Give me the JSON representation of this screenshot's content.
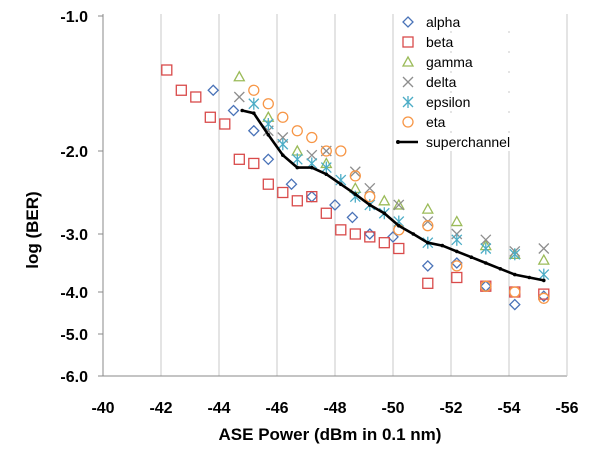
{
  "chart_data": {
    "type": "scatter",
    "title": "",
    "xlabel": "ASE Power (dBm in 0.1 nm)",
    "ylabel": "log (BER)",
    "x_ticks": [
      -40,
      -42,
      -44,
      -46,
      -48,
      -50,
      -52,
      -54,
      -56
    ],
    "x_tick_labels": [
      "-40",
      "-42",
      "-44",
      "-46",
      "-48",
      "-50",
      "-52",
      "-54",
      "-56"
    ],
    "y_ticks": [
      -1.0,
      -2.0,
      -3.0,
      -4.0,
      -5.0,
      -6.0
    ],
    "y_tick_labels": [
      "-1.0",
      "-2.0",
      "-3.0",
      "-4.0",
      "-5.0",
      "-6.0"
    ],
    "grid": "vertical",
    "legend_position": "top-right",
    "series": [
      {
        "name": "alpha",
        "marker": "diamond",
        "color": "#4a73b8",
        "x": [
          -43.8,
          -44.5,
          -45.2,
          -45.7,
          -46.5,
          -47.2,
          -48.0,
          -48.6,
          -49.2,
          -50.0,
          -51.2,
          -52.2,
          -53.2,
          -54.2,
          -55.2
        ],
        "y": [
          -1.55,
          -1.7,
          -1.85,
          -2.1,
          -2.4,
          -2.55,
          -2.65,
          -2.8,
          -3.0,
          -3.05,
          -3.55,
          -3.5,
          -3.9,
          -4.3,
          -4.1
        ]
      },
      {
        "name": "beta",
        "marker": "square",
        "color": "#d94a4a",
        "x": [
          -42.2,
          -42.7,
          -43.2,
          -43.7,
          -44.2,
          -44.7,
          -45.2,
          -45.7,
          -46.2,
          -46.7,
          -47.2,
          -47.7,
          -48.2,
          -48.7,
          -49.2,
          -49.7,
          -50.2,
          -51.2,
          -52.2,
          -53.2,
          -54.2,
          -55.2
        ],
        "y": [
          -1.4,
          -1.55,
          -1.6,
          -1.75,
          -1.8,
          -2.1,
          -2.15,
          -2.4,
          -2.5,
          -2.6,
          -2.55,
          -2.75,
          -2.95,
          -3.0,
          -3.05,
          -3.15,
          -3.25,
          -3.85,
          -3.75,
          -3.9,
          -4.0,
          -4.05
        ]
      },
      {
        "name": "gamma",
        "marker": "triangle",
        "color": "#9bbb59",
        "x": [
          -44.7,
          -45.7,
          -46.7,
          -47.7,
          -48.7,
          -49.7,
          -50.2,
          -51.2,
          -52.2,
          -53.2,
          -54.2,
          -55.2
        ],
        "y": [
          -1.45,
          -1.75,
          -2.0,
          -2.15,
          -2.45,
          -2.6,
          -2.65,
          -2.7,
          -2.85,
          -3.2,
          -3.35,
          -3.45
        ]
      },
      {
        "name": "delta",
        "marker": "x",
        "color": "#8e8e8e",
        "x": [
          -44.7,
          -45.7,
          -46.2,
          -47.2,
          -47.7,
          -48.7,
          -49.2,
          -50.2,
          -51.2,
          -52.2,
          -53.2,
          -54.2,
          -55.2
        ],
        "y": [
          -1.6,
          -1.85,
          -1.9,
          -2.05,
          -2.0,
          -2.25,
          -2.45,
          -2.65,
          -2.85,
          -3.0,
          -3.1,
          -3.3,
          -3.25
        ]
      },
      {
        "name": "epsilon",
        "marker": "asterisk",
        "color": "#4bacc6",
        "x": [
          -45.2,
          -45.7,
          -46.2,
          -46.7,
          -47.2,
          -47.7,
          -48.2,
          -48.7,
          -49.2,
          -49.7,
          -50.2,
          -51.2,
          -52.2,
          -53.2,
          -54.2,
          -55.2
        ],
        "y": [
          -1.65,
          -1.8,
          -1.95,
          -2.1,
          -2.15,
          -2.2,
          -2.35,
          -2.55,
          -2.65,
          -2.75,
          -2.85,
          -3.15,
          -3.1,
          -3.25,
          -3.35,
          -3.7
        ]
      },
      {
        "name": "eta",
        "marker": "circle",
        "color": "#f79646",
        "x": [
          -45.2,
          -45.7,
          -46.2,
          -46.7,
          -47.2,
          -47.7,
          -48.2,
          -48.7,
          -49.2,
          -50.2,
          -51.2,
          -52.2,
          -53.2,
          -54.2,
          -55.2
        ],
        "y": [
          -1.55,
          -1.65,
          -1.75,
          -1.85,
          -1.9,
          -2.0,
          -2.0,
          -2.3,
          -2.55,
          -2.95,
          -2.9,
          -3.55,
          -3.9,
          -4.0,
          -4.15
        ]
      },
      {
        "name": "superchannel",
        "marker": "line",
        "color": "#000000",
        "x": [
          -44.8,
          -45.2,
          -45.7,
          -46.2,
          -46.7,
          -47.2,
          -47.7,
          -48.2,
          -48.7,
          -49.2,
          -49.7,
          -50.2,
          -50.7,
          -51.2,
          -51.7,
          -52.2,
          -52.7,
          -53.2,
          -53.7,
          -54.2,
          -54.7,
          -55.2
        ],
        "y": [
          -1.7,
          -1.72,
          -1.88,
          -2.05,
          -2.2,
          -2.2,
          -2.28,
          -2.4,
          -2.52,
          -2.65,
          -2.75,
          -2.9,
          -3.0,
          -3.15,
          -3.2,
          -3.3,
          -3.4,
          -3.5,
          -3.6,
          -3.7,
          -3.75,
          -3.8
        ]
      }
    ]
  }
}
